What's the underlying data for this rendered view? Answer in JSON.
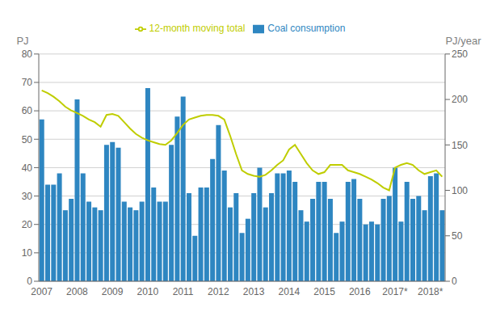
{
  "chart_data": {
    "type": "bar",
    "categories": [
      "2007",
      null,
      null,
      null,
      null,
      null,
      "2008",
      null,
      null,
      null,
      null,
      null,
      "2009",
      null,
      null,
      null,
      null,
      null,
      "2010",
      null,
      null,
      null,
      null,
      null,
      "2011",
      null,
      null,
      null,
      null,
      null,
      "2012",
      null,
      null,
      null,
      null,
      null,
      "2013",
      null,
      null,
      null,
      null,
      null,
      "2014",
      null,
      null,
      null,
      null,
      null,
      "2015",
      null,
      null,
      null,
      null,
      null,
      "2016",
      null,
      null,
      null,
      null,
      null,
      "2017*",
      null,
      null,
      null,
      null,
      null,
      "2018*",
      null,
      null
    ],
    "series": [
      {
        "name": "Coal consumption",
        "type": "bar",
        "color": "#2E86C1",
        "values": [
          57,
          34,
          34,
          38,
          25,
          29,
          64,
          38,
          28,
          26,
          25,
          48,
          49,
          47,
          28,
          26,
          25,
          28,
          68,
          33,
          28,
          28,
          48,
          58,
          65,
          31,
          16,
          33,
          33,
          43,
          55,
          39,
          26,
          31,
          17,
          22,
          31,
          40,
          26,
          31,
          38,
          38,
          39,
          35,
          25,
          21,
          29,
          35,
          35,
          29,
          17,
          21,
          35,
          36,
          29,
          20,
          21,
          20,
          29,
          30,
          40,
          21,
          35,
          29,
          30,
          25,
          37,
          38,
          25
        ]
      },
      {
        "name": "12-month moving total",
        "type": "line",
        "color": "#BFCD00",
        "axis": "y2",
        "values": [
          210,
          207,
          203,
          198,
          192,
          188,
          185,
          182,
          178,
          175,
          170,
          183,
          184,
          182,
          175,
          168,
          162,
          158,
          155,
          153,
          151,
          150,
          155,
          163,
          172,
          178,
          180,
          182,
          183,
          183,
          182,
          178,
          160,
          140,
          122,
          118,
          116,
          115,
          117,
          122,
          128,
          133,
          145,
          150,
          140,
          130,
          122,
          118,
          120,
          128,
          128,
          128,
          122,
          120,
          118,
          115,
          112,
          108,
          103,
          100,
          125,
          128,
          130,
          128,
          122,
          118,
          120,
          122,
          115
        ]
      }
    ],
    "y_label": "PJ",
    "y2_label": "PJ/year",
    "ylim": [
      0,
      80
    ],
    "yticks": [
      0,
      10,
      20,
      30,
      40,
      50,
      60,
      70,
      80
    ],
    "y2lim": [
      0,
      250
    ],
    "y2ticks": [
      0,
      50,
      100,
      150,
      200,
      250
    ],
    "grid": true,
    "legend": "top"
  }
}
